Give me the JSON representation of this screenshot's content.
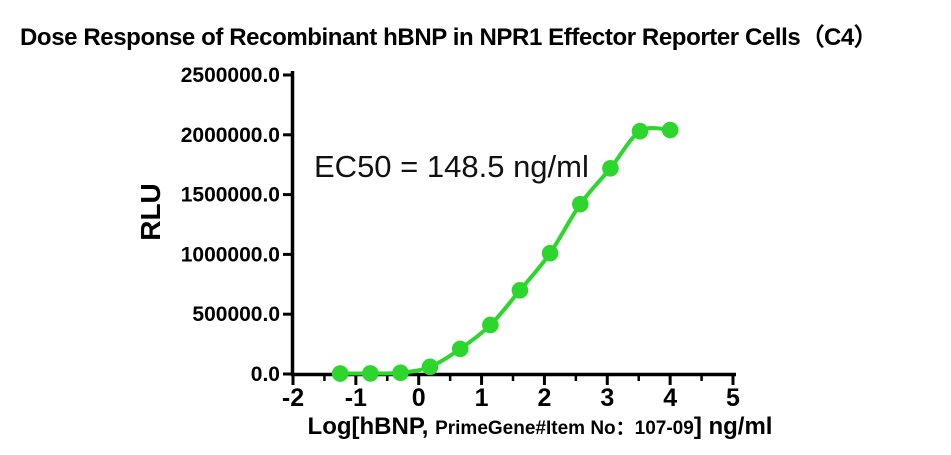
{
  "chart_data": {
    "type": "scatter",
    "title": "Dose Response of Recombinant hBNP in NPR1 Effector Reporter Cells（C4）",
    "ylabel": "RLU",
    "xlabel": "Log[hBNP, PrimeGene#Item No：107-09] ng/ml",
    "xlabel_parts": [
      {
        "text": "Log[hBNP, ",
        "size": "big"
      },
      {
        "text": "PrimeGene#Item No：107-09",
        "size": "small"
      },
      {
        "text": "] ng/ml",
        "size": "big"
      }
    ],
    "annotation": "EC50 = 148.5 ng/ml",
    "xlim": [
      -2,
      5
    ],
    "ylim": [
      0,
      2500000
    ],
    "x_ticks": [
      -2,
      -1,
      0,
      1,
      2,
      3,
      4,
      5
    ],
    "x_tick_labels": [
      "-2",
      "-1",
      "0",
      "1",
      "2",
      "3",
      "4",
      "5"
    ],
    "x_minor_tick_step": 0.5,
    "y_ticks": [
      0,
      500000,
      1000000,
      1500000,
      2000000,
      2500000
    ],
    "y_tick_labels": [
      "0.0",
      "500000.0",
      "1000000.0",
      "1500000.0",
      "2000000.0",
      "2500000.0"
    ],
    "grid": false,
    "legend": "none",
    "series": [
      {
        "name": "hBNP dose response (C4)",
        "marker": "circle",
        "line": "sigmoid-fit-through-points",
        "x": [
          -1.25,
          -0.77,
          -0.29,
          0.18,
          0.66,
          1.14,
          1.61,
          2.09,
          2.57,
          3.05,
          3.52,
          4.0
        ],
        "y": [
          4000,
          5000,
          10000,
          60000,
          210000,
          410000,
          700000,
          1010000,
          1420000,
          1720000,
          2030000,
          2040000
        ]
      }
    ],
    "fit": {
      "model": "4PL sigmoid",
      "ec50_ng_ml": 148.5,
      "bottom": 0,
      "top": 2060000
    },
    "colors": {
      "series": "#2DD62D",
      "axis": "#000000",
      "text": "#000000",
      "background": "#ffffff"
    }
  }
}
